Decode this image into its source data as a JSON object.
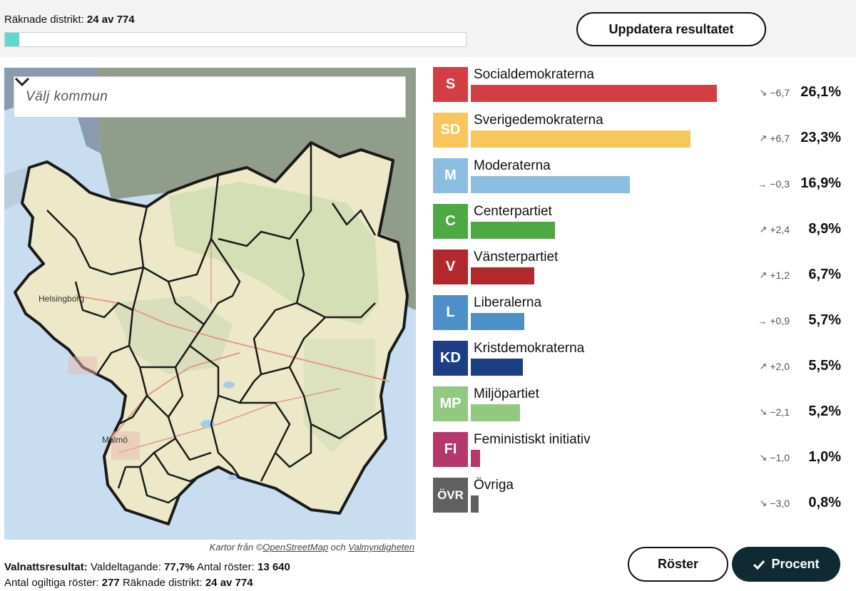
{
  "header": {
    "counted_label": "Räknade distrikt:",
    "counted_value": "24 av 774",
    "progress_fraction": 0.031,
    "update_button": "Uppdatera resultatet"
  },
  "map": {
    "select_placeholder": "Välj kommun",
    "city_labels": [
      "Helsingborg",
      "Malmö"
    ],
    "credit_prefix": "Kartor från ©",
    "credit_osm": "OpenStreetMap",
    "credit_mid": " och ",
    "credit_valmynd": "Valmyndigheten"
  },
  "summary": {
    "line1_label": "Valnattsresultat:",
    "turnout_label": "Valdeltagande:",
    "turnout_value": "77,7%",
    "votes_label": "Antal röster:",
    "votes_value": "13 640",
    "invalid_label": "Antal ogiltiga röster:",
    "invalid_value": "277",
    "districts_label": "Räknade distrikt:",
    "districts_value": "24 av 774"
  },
  "parties": [
    {
      "abbr": "S",
      "name": "Socialdemokraterna",
      "color": "#d43d44",
      "percent": 26.1,
      "percent_label": "26,1%",
      "arrow": "↘",
      "change": "−6,7"
    },
    {
      "abbr": "SD",
      "name": "Sverigedemokraterna",
      "color": "#f8c65a",
      "percent": 23.3,
      "percent_label": "23,3%",
      "arrow": "↗",
      "change": "+6,7"
    },
    {
      "abbr": "M",
      "name": "Moderaterna",
      "color": "#8abde0",
      "percent": 16.9,
      "percent_label": "16,9%",
      "arrow": "→",
      "change": "−0,3"
    },
    {
      "abbr": "C",
      "name": "Centerpartiet",
      "color": "#4fa942",
      "percent": 8.9,
      "percent_label": "8,9%",
      "arrow": "↗",
      "change": "+2,4"
    },
    {
      "abbr": "V",
      "name": "Vänsterpartiet",
      "color": "#b3282d",
      "percent": 6.7,
      "percent_label": "6,7%",
      "arrow": "↗",
      "change": "+1,2"
    },
    {
      "abbr": "L",
      "name": "Liberalerna",
      "color": "#4d8fc8",
      "percent": 5.7,
      "percent_label": "5,7%",
      "arrow": "→",
      "change": "+0,9"
    },
    {
      "abbr": "KD",
      "name": "Kristdemokraterna",
      "color": "#1b3f87",
      "percent": 5.5,
      "percent_label": "5,5%",
      "arrow": "↗",
      "change": "+2,0"
    },
    {
      "abbr": "MP",
      "name": "Miljöpartiet",
      "color": "#90c97f",
      "percent": 5.2,
      "percent_label": "5,2%",
      "arrow": "↘",
      "change": "−2,1"
    },
    {
      "abbr": "FI",
      "name": "Feministiskt initiativ",
      "color": "#b5386c",
      "percent": 1.0,
      "percent_label": "1,0%",
      "arrow": "↘",
      "change": "−1,0"
    },
    {
      "abbr": "ÖVR",
      "name": "Övriga",
      "color": "#606060",
      "percent": 0.8,
      "percent_label": "0,8%",
      "arrow": "↘",
      "change": "−3,0"
    }
  ],
  "buttons": {
    "votes": "Röster",
    "percent": "Procent"
  }
}
